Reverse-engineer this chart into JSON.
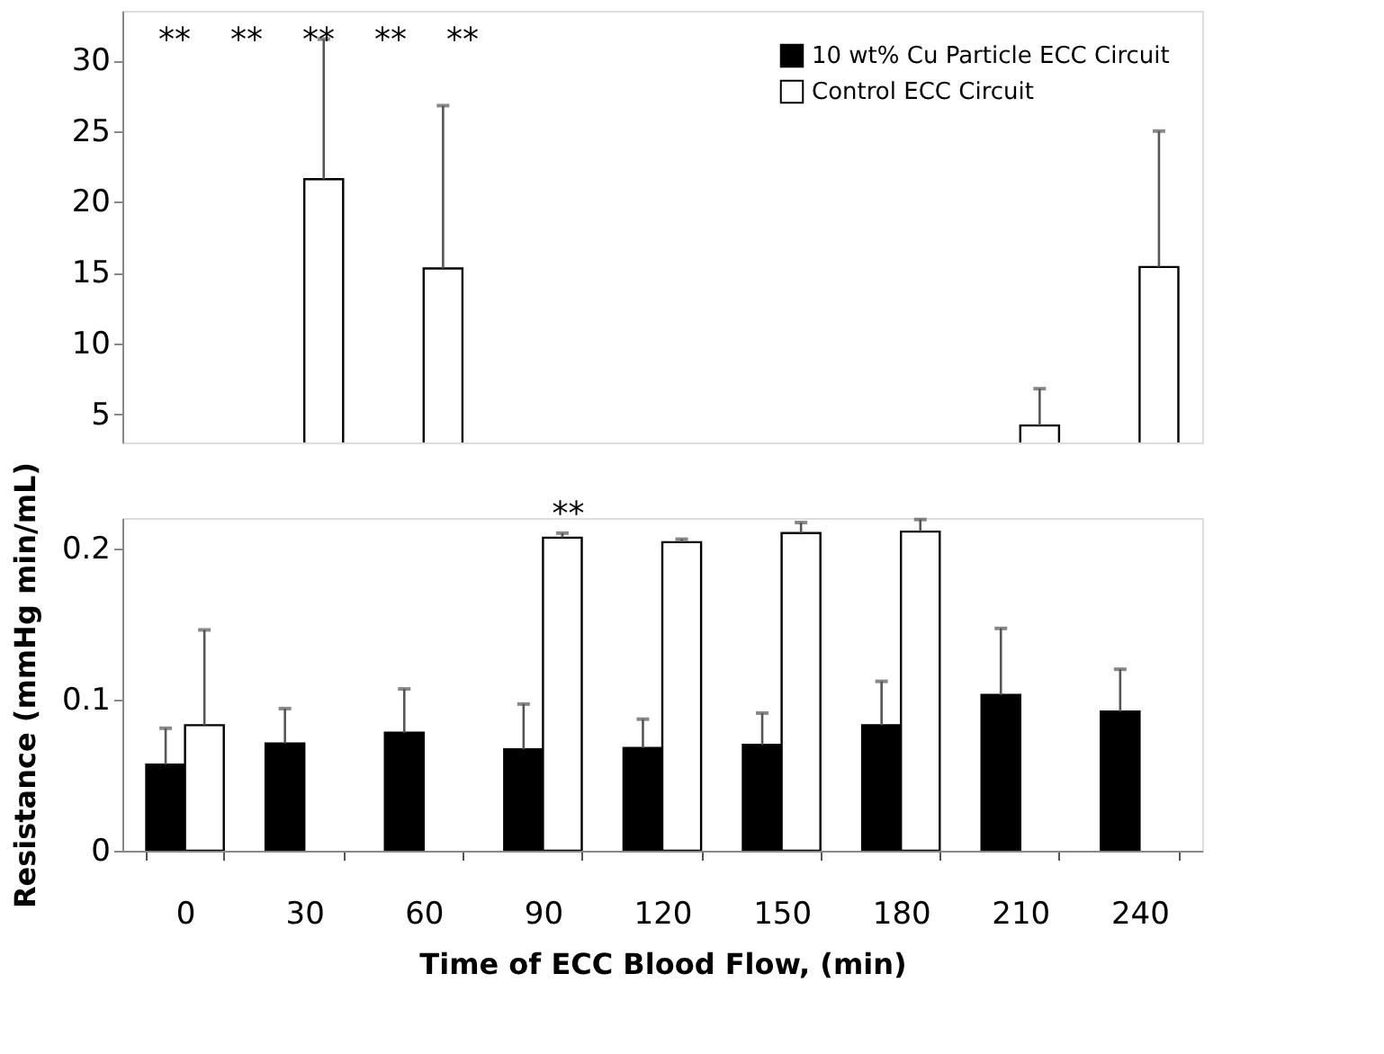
{
  "chart_data": [
    {
      "type": "bar",
      "categories": [
        "0",
        "30",
        "60",
        "90",
        "120",
        "150",
        "180",
        "210",
        "240"
      ],
      "ylim": [
        3,
        33.5
      ],
      "yticks": [
        5,
        10,
        15,
        20,
        25,
        30
      ],
      "tick_labels": "y",
      "legend": "top right",
      "grid": false,
      "series": [
        {
          "name": "10 wt% Cu Particle ECC Circuit",
          "color": "#000000",
          "values": [
            null,
            null,
            null,
            null,
            null,
            null,
            null,
            null,
            null
          ]
        },
        {
          "name": "Control ECC Circuit",
          "color": "#ffffff",
          "values": [
            null,
            21.6,
            15.3,
            null,
            null,
            null,
            null,
            4.2,
            15.4
          ],
          "errors": [
            null,
            [
              21.6,
              31.5
            ],
            [
              15.3,
              26.8
            ],
            null,
            null,
            null,
            null,
            [
              4.2,
              6.8
            ],
            [
              15.4,
              25
            ]
          ]
        }
      ],
      "annotations": [
        "**",
        "**",
        "**",
        "**",
        "**"
      ]
    },
    {
      "type": "bar",
      "categories": [
        "0",
        "30",
        "60",
        "90",
        "120",
        "150",
        "180",
        "210",
        "240"
      ],
      "ylim": [
        0,
        0.22
      ],
      "yticks": [
        {
          "value": 0,
          "label": "0"
        },
        {
          "value": 0.1,
          "label": "0.1"
        },
        {
          "value": 0.2,
          "label": "0.2"
        }
      ],
      "xlabel": "Time of ECC Blood Flow, (min)",
      "ylabel": "Resistance (mmHg min/mL)",
      "grid": false,
      "series": [
        {
          "color": "#000000",
          "values": [
            0.057,
            0.071,
            0.078,
            0.067,
            0.068,
            0.07,
            0.083,
            0.103,
            0.092
          ],
          "errors": [
            [
              0.057,
              0.081
            ],
            [
              0.071,
              0.094
            ],
            [
              0.078,
              0.107
            ],
            [
              0.067,
              0.097
            ],
            [
              0.068,
              0.087
            ],
            [
              0.07,
              0.091
            ],
            [
              0.083,
              0.112
            ],
            [
              0.103,
              0.147
            ],
            [
              0.092,
              0.12
            ]
          ]
        },
        {
          "color": "#ffffff",
          "values": [
            0.083,
            null,
            null,
            0.207,
            0.204,
            0.21,
            0.211,
            null,
            null
          ],
          "errors": [
            [
              0.083,
              0.146
            ],
            null,
            null,
            [
              0.207,
              0.21
            ],
            [
              0.204,
              0.206
            ],
            [
              0.21,
              0.217
            ],
            [
              0.211,
              0.219
            ],
            null,
            null
          ]
        }
      ],
      "annotations": [
        {
          "text": "**",
          "x": "90",
          "y": 0.21
        }
      ]
    }
  ]
}
